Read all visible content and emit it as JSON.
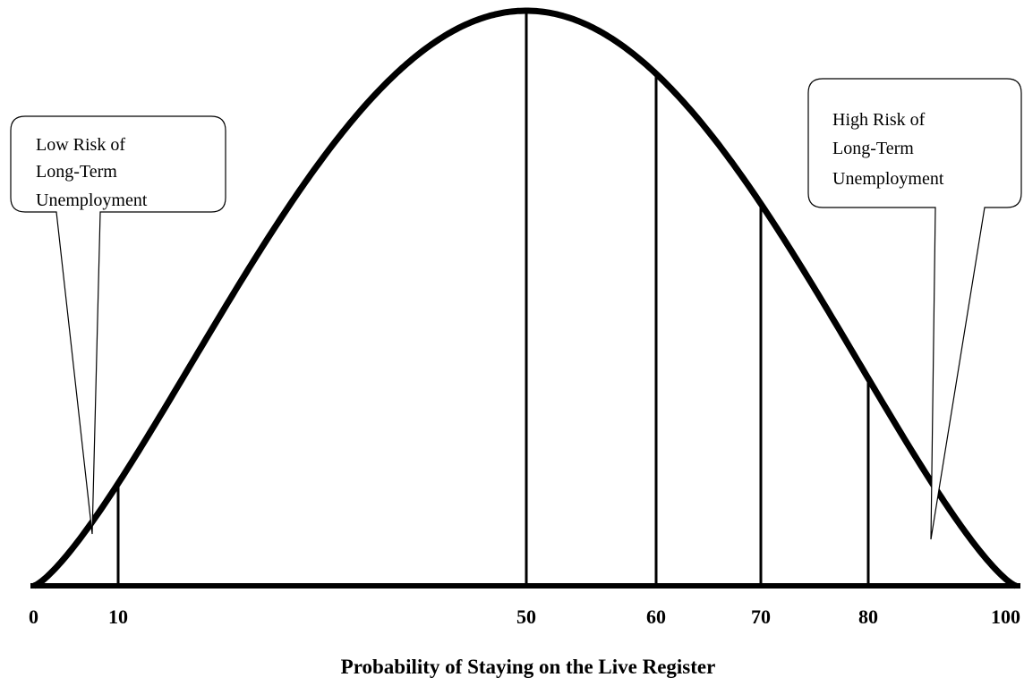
{
  "axis": {
    "title": "Probability of Staying on the Live Register",
    "tick_labels": [
      "0",
      "10",
      "50",
      "60",
      "70",
      "80",
      "100"
    ]
  },
  "callouts": [
    {
      "lines": [
        "Low Risk of",
        "Long-Term",
        "Unemployment"
      ]
    },
    {
      "lines": [
        "High Risk of",
        "Long-Term",
        "Unemployment"
      ]
    }
  ]
}
